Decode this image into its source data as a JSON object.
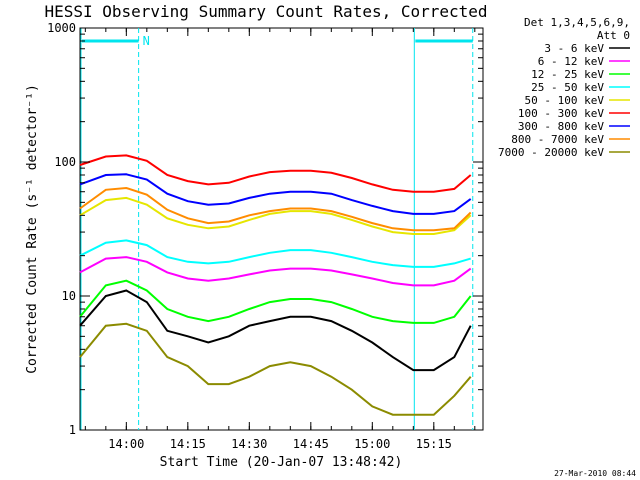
{
  "chart_data": {
    "type": "line",
    "title": "HESSI Observing Summary Count Rates, Corrected",
    "xlabel": "Start Time (20-Jan-07 13:48:42)",
    "ylabel": "Corrected Count Rate (s⁻¹ detector⁻¹)",
    "x_scale": "time",
    "y_scale": "log",
    "xlim": [
      "13:48:42",
      "15:27:00"
    ],
    "ylim": [
      1,
      1000
    ],
    "x_ticks": [
      "14:00",
      "14:15",
      "14:30",
      "14:45",
      "15:00",
      "15:15"
    ],
    "y_ticks": [
      "1",
      "10",
      "100",
      "1000"
    ],
    "legend_position": "outside-right",
    "legend_header": [
      "Det 1,3,4,5,6,9,",
      "Att 0"
    ],
    "night_markers": {
      "color": "#00e5ee",
      "solid_lines": [
        "13:48:42",
        "15:10:00"
      ],
      "dashed_lines": [
        "14:03:00",
        "15:24:30"
      ],
      "bars": [
        [
          "13:48:42",
          "14:03:00"
        ],
        [
          "15:10:00",
          "15:24:30"
        ]
      ],
      "label": "N"
    },
    "x": [
      "13:48:42",
      "13:55",
      "14:00",
      "14:05",
      "14:10",
      "14:15",
      "14:20",
      "14:25",
      "14:30",
      "14:35",
      "14:40",
      "14:45",
      "14:50",
      "14:55",
      "15:00",
      "15:05",
      "15:10",
      "15:15",
      "15:20",
      "15:24"
    ],
    "series": [
      {
        "name": "3 - 6 keV",
        "color": "#000000",
        "values": [
          6.0,
          10,
          11,
          9,
          5.5,
          5,
          4.5,
          5,
          6,
          6.5,
          7,
          7,
          6.5,
          5.5,
          4.5,
          3.5,
          2.8,
          2.8,
          3.5,
          6
        ]
      },
      {
        "name": "6 - 12 keV",
        "color": "#ff00ff",
        "values": [
          15,
          19,
          19.5,
          18,
          15,
          13.5,
          13,
          13.5,
          14.5,
          15.5,
          16,
          16,
          15.5,
          14.5,
          13.5,
          12.5,
          12,
          12,
          13,
          16
        ]
      },
      {
        "name": "12 - 25 keV",
        "color": "#00ff00",
        "values": [
          7,
          12,
          13,
          11,
          8,
          7,
          6.5,
          7,
          8,
          9,
          9.5,
          9.5,
          9,
          8,
          7,
          6.5,
          6.3,
          6.3,
          7,
          10
        ]
      },
      {
        "name": "25 - 50 keV",
        "color": "#00ffff",
        "values": [
          20,
          25,
          26,
          24,
          19.5,
          18,
          17.5,
          18,
          19.5,
          21,
          22,
          22,
          21,
          19.5,
          18,
          17,
          16.5,
          16.5,
          17.5,
          19
        ]
      },
      {
        "name": "50 - 100 keV",
        "color": "#e6e600",
        "values": [
          40,
          52,
          54,
          48,
          38,
          34,
          32,
          33,
          37,
          41,
          43,
          43,
          41,
          37,
          33,
          30,
          29,
          29,
          31,
          40
        ]
      },
      {
        "name": "100 - 300 keV",
        "color": "#ff0000",
        "values": [
          95,
          110,
          112,
          102,
          80,
          72,
          68,
          70,
          78,
          84,
          86,
          86,
          83,
          76,
          68,
          62,
          60,
          60,
          63,
          80
        ]
      },
      {
        "name": "300 - 800 keV",
        "color": "#0000ff",
        "values": [
          68,
          80,
          81,
          74,
          58,
          51,
          48,
          49,
          54,
          58,
          60,
          60,
          58,
          52,
          47,
          43,
          41,
          41,
          43,
          53
        ]
      },
      {
        "name": "800 - 7000 keV",
        "color": "#ff8c00",
        "values": [
          45,
          62,
          64,
          57,
          44,
          38,
          35,
          36,
          40,
          43,
          45,
          45,
          43,
          39,
          35,
          32,
          31,
          31,
          32,
          42
        ]
      },
      {
        "name": "7000 - 20000 keV",
        "color": "#8b8b00",
        "values": [
          3.5,
          6,
          6.2,
          5.5,
          3.5,
          3,
          2.2,
          2.2,
          2.5,
          3,
          3.2,
          3,
          2.5,
          2,
          1.5,
          1.3,
          1.3,
          1.3,
          1.8,
          2.5
        ]
      }
    ]
  },
  "stamp": "27-Mar-2010 08:44"
}
